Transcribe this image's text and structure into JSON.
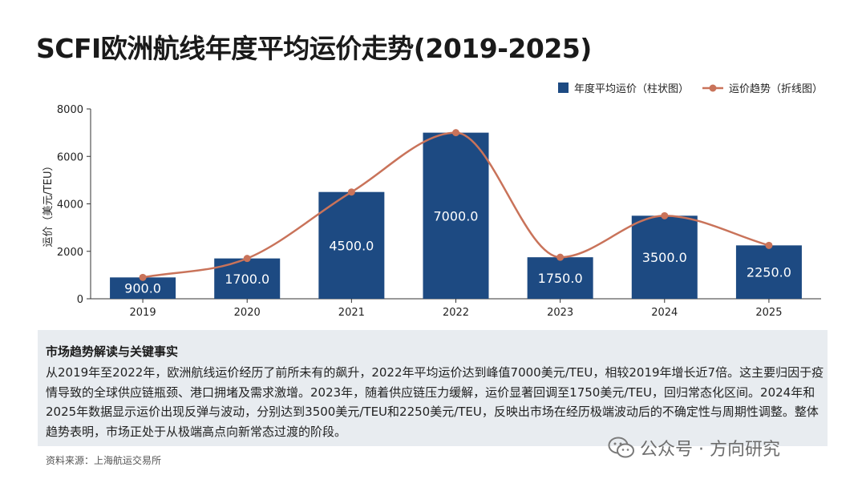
{
  "title": "SCFI欧洲航线年度平均运价走势(2019-2025)",
  "chart_data": {
    "type": "bar+line",
    "categories": [
      "2019",
      "2020",
      "2021",
      "2022",
      "2023",
      "2024",
      "2025"
    ],
    "series": [
      {
        "name": "年度平均运价（柱状图）",
        "type": "bar",
        "values": [
          900,
          1700,
          4500,
          7000,
          1750,
          3500,
          2250
        ],
        "color": "#1d4a82"
      },
      {
        "name": "运价趋势（折线图）",
        "type": "line",
        "values": [
          900,
          1700,
          4500,
          7000,
          1750,
          3500,
          2250
        ],
        "color": "#c9735a"
      }
    ],
    "data_labels": [
      "900.0",
      "1700.0",
      "4500.0",
      "7000.0",
      "1750.0",
      "3500.0",
      "2250.0"
    ],
    "ylabel": "运价（美元/TEU）",
    "ylim": [
      0,
      8000
    ],
    "yticks": [
      0,
      2000,
      4000,
      6000,
      8000
    ],
    "legend_position": "top-right",
    "grid": false
  },
  "panel": {
    "title": "市场趋势解读与关键事实",
    "body": "从2019年至2022年，欧洲航线运价经历了前所未有的飙升，2022年平均运价达到峰值7000美元/TEU，相较2019年增长近7倍。这主要归因于疫情导致的全球供应链瓶颈、港口拥堵及需求激增。2023年，随着供应链压力缓解，运价显著回调至1750美元/TEU，回归常态化区间。2024年和2025年数据显示运价出现反弹与波动，分别达到3500美元/TEU和2250美元/TEU，反映出市场在经历极端波动后的不确定性与周期性调整。整体趋势表明，市场正处于从极端高点向新常态过渡的阶段。"
  },
  "source": "资料来源：上海航运交易所",
  "watermark": "公众号 · 方向研究"
}
